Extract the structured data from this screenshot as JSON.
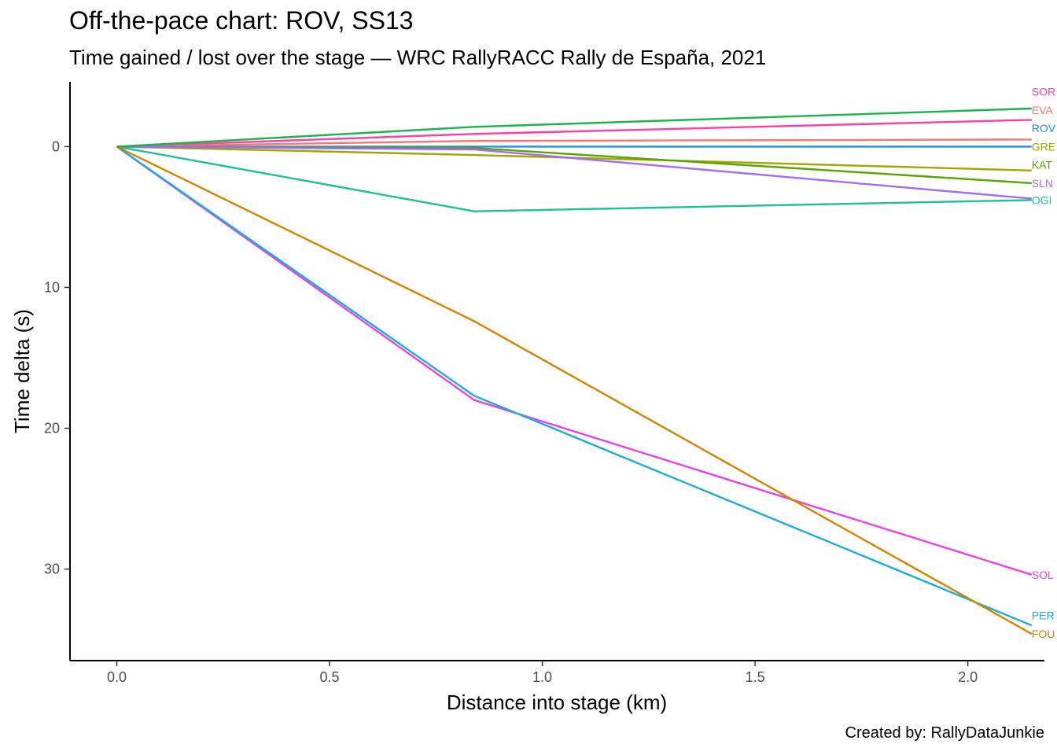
{
  "title": "Off-the-pace chart: ROV, SS13",
  "subtitle": "Time gained / lost over the stage — WRC RallyRACC Rally de España, 2021",
  "caption": "Created by: RallyDataJunkie",
  "chart_data": {
    "type": "line",
    "xlabel": "Distance into stage (km)",
    "ylabel": "Time delta (s)",
    "xlim": [
      -0.11,
      2.18
    ],
    "ylim": [
      -4.6,
      36.5
    ],
    "y_reversed": true,
    "x_ticks": [
      0.0,
      0.5,
      1.0,
      1.5,
      2.0
    ],
    "x_tick_labels": [
      "0.0",
      "0.5",
      "1.0",
      "1.5",
      "2.0"
    ],
    "y_ticks": [
      0,
      10,
      20,
      30
    ],
    "y_tick_labels": [
      "0",
      "10",
      "20",
      "30"
    ],
    "grid": false,
    "legend": "none (direct labels at line ends)",
    "x": [
      0.0,
      0.84,
      2.15
    ],
    "series": [
      {
        "name": "SOR",
        "color": "#ff3fa4",
        "values": [
          0,
          -0.9,
          -1.9
        ]
      },
      {
        "name": "EVA",
        "color": "#f8766d",
        "values": [
          0,
          -0.4,
          -0.5
        ]
      },
      {
        "name": "ROV",
        "color": "#1f8fe8",
        "values": [
          0,
          0.0,
          0.0
        ]
      },
      {
        "name": "GRE",
        "color": "#a3a500",
        "values": [
          0,
          0.6,
          1.7
        ]
      },
      {
        "name": "KAT",
        "color": "#5ba300",
        "values": [
          0,
          0.1,
          2.6
        ]
      },
      {
        "name": "SLN",
        "color": "#a36cf4",
        "values": [
          0,
          0.2,
          3.7
        ]
      },
      {
        "name": "OGI",
        "color": "#1fbf9a",
        "values": [
          0,
          4.6,
          3.8
        ]
      },
      {
        "name": "SOL",
        "color": "#e544e8",
        "values": [
          0,
          18.0,
          30.4
        ]
      },
      {
        "name": "PER",
        "color": "#1eabd8",
        "values": [
          0,
          17.7,
          34.0
        ]
      },
      {
        "name": "FOU",
        "color": "#d08400",
        "values": [
          0,
          12.4,
          34.6
        ]
      },
      {
        "name": "",
        "color": "#1bb24b",
        "values": [
          0,
          -1.4,
          -2.7
        ]
      }
    ],
    "labels": [
      {
        "text": "SOR",
        "color": "#ff3fa4",
        "y": -3.9
      },
      {
        "text": "EVA",
        "color": "#f8766d",
        "y": -2.6
      },
      {
        "text": "ROV",
        "color": "#1f8fe8",
        "y": -1.3
      },
      {
        "text": "GRE",
        "color": "#a3a500",
        "y": 0.0
      },
      {
        "text": "KAT",
        "color": "#5ba300",
        "y": 1.3
      },
      {
        "text": "SLN",
        "color": "#a36cf4",
        "y": 2.6
      },
      {
        "text": "OGI",
        "color": "#1fbf9a",
        "y": 3.8
      },
      {
        "text": "SOL",
        "color": "#e544e8",
        "y": 30.4
      },
      {
        "text": "PER",
        "color": "#1eabd8",
        "y": 33.3
      },
      {
        "text": "FOU",
        "color": "#d08400",
        "y": 34.6
      }
    ]
  }
}
